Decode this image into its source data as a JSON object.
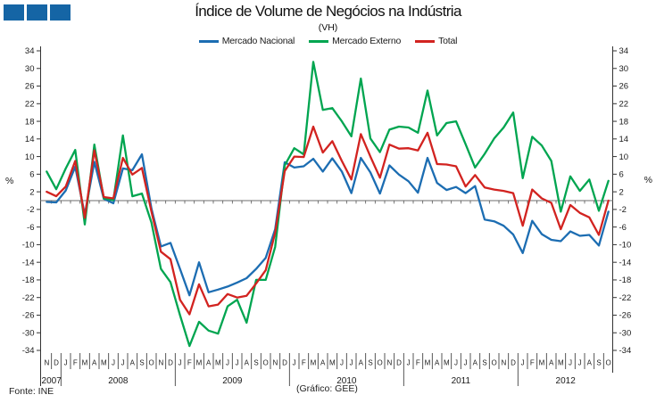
{
  "header": {
    "title": "Índice de Volume de Negócios na Indústria",
    "subtitle": "(VH)"
  },
  "footer": {
    "source": "Fonte: INE",
    "credit": "(Gráfico: GEE)"
  },
  "chart_data": {
    "type": "line",
    "title": "Índice de Volume de Negócios na Indústria",
    "subtitle": "(VH)",
    "ylabel_left": "%",
    "ylabel_right": "%",
    "ylim": [
      -34,
      34
    ],
    "ytick_step": 4,
    "ytick_labels": [
      34,
      30,
      26,
      22,
      18,
      14,
      10,
      6,
      2,
      -2,
      -6,
      -10,
      -14,
      -18,
      -22,
      -26,
      -30,
      -34
    ],
    "zero_line": true,
    "legend_position": "top",
    "x_month_letters": [
      "N",
      "D",
      "J",
      "F",
      "M",
      "A",
      "M",
      "J",
      "J",
      "A",
      "S",
      "O",
      "N",
      "D",
      "J",
      "F",
      "M",
      "A",
      "M",
      "J",
      "J",
      "A",
      "S",
      "O",
      "N",
      "D",
      "J",
      "F",
      "M",
      "A",
      "M",
      "J",
      "J",
      "A",
      "S",
      "O",
      "N",
      "D",
      "J",
      "F",
      "M",
      "A",
      "M",
      "J",
      "J",
      "A",
      "S",
      "O",
      "N",
      "D",
      "J",
      "F",
      "M",
      "A",
      "M",
      "J",
      "J",
      "A",
      "S",
      "O"
    ],
    "years": [
      {
        "label": "2007",
        "months": 2
      },
      {
        "label": "2008",
        "months": 12
      },
      {
        "label": "2009",
        "months": 12
      },
      {
        "label": "2010",
        "months": 12
      },
      {
        "label": "2011",
        "months": 12
      },
      {
        "label": "2012",
        "months": 10
      }
    ],
    "series": [
      {
        "name": "Mercado Nacional",
        "color": "#1C6DB2",
        "values": [
          -0.3,
          -0.4,
          2.3,
          7.7,
          -3.2,
          8.8,
          0.4,
          -0.6,
          7.3,
          6.9,
          10.5,
          -1.8,
          -10.4,
          -9.6,
          -15.5,
          -21.5,
          -14.0,
          -20.8,
          -20.2,
          -19.5,
          -18.6,
          -17.6,
          -15.5,
          -13.0,
          -6.5,
          8.7,
          7.5,
          7.8,
          9.5,
          6.6,
          9.6,
          6.6,
          1.7,
          9.7,
          6.4,
          1.6,
          8.0,
          5.9,
          4.4,
          1.8,
          9.7,
          4.0,
          2.4,
          3.1,
          1.7,
          3.3,
          -4.3,
          -4.7,
          -5.7,
          -7.7,
          -11.9,
          -4.6,
          -7.6,
          -8.9,
          -9.2,
          -7.0,
          -8.0,
          -7.8,
          -10.2,
          -2.5
        ]
      },
      {
        "name": "Mercado Externo",
        "color": "#00A550",
        "values": [
          6.6,
          2.6,
          7.3,
          11.5,
          -5.4,
          12.7,
          0.5,
          0.1,
          14.8,
          1.0,
          1.6,
          -5.0,
          -15.5,
          -18.5,
          -26.0,
          -33.0,
          -27.5,
          -29.5,
          -30.2,
          -24.0,
          -22.5,
          -27.7,
          -18.0,
          -18.0,
          -10.5,
          8.0,
          11.9,
          10.5,
          31.5,
          20.6,
          21.0,
          18.0,
          14.6,
          27.7,
          14.1,
          11.0,
          16.1,
          16.8,
          16.6,
          15.4,
          25.0,
          14.8,
          17.6,
          18.0,
          12.8,
          7.5,
          10.6,
          14.1,
          16.6,
          20.0,
          5.1,
          14.5,
          12.5,
          9.0,
          -2.5,
          5.5,
          2.2,
          4.8,
          -2.3,
          4.5
        ]
      },
      {
        "name": "Total",
        "color": "#D22320",
        "values": [
          2.0,
          1.0,
          3.2,
          9.0,
          -3.9,
          11.4,
          0.8,
          0.5,
          9.7,
          5.9,
          7.4,
          -2.5,
          -11.6,
          -13.3,
          -22.5,
          -25.8,
          -19.0,
          -24.0,
          -23.6,
          -21.2,
          -22.0,
          -21.6,
          -18.8,
          -15.8,
          -7.3,
          6.7,
          10.0,
          9.9,
          16.8,
          10.9,
          13.5,
          9.0,
          4.8,
          15.1,
          10.0,
          5.2,
          12.7,
          11.8,
          11.9,
          11.4,
          15.4,
          8.3,
          8.2,
          7.8,
          3.2,
          5.8,
          3.0,
          2.5,
          2.2,
          1.7,
          -5.7,
          2.5,
          0.5,
          -0.5,
          -6.5,
          -1.0,
          -2.8,
          -3.8,
          -7.8,
          0.0
        ]
      }
    ]
  },
  "logo": {
    "color": "#1565A5",
    "square_count": 3
  }
}
